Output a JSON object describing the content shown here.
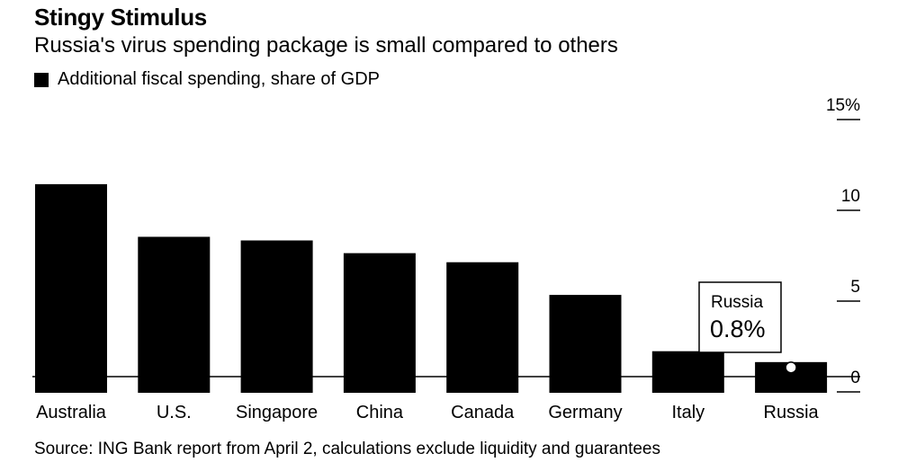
{
  "header": {
    "title": "Stingy Stimulus",
    "subtitle": "Russia's virus spending package is small compared to others",
    "legend_label": "Additional fiscal spending, share of GDP"
  },
  "footer": {
    "source": "Source: ING Bank report from April 2, calculations exclude liquidity and guarantees"
  },
  "callout": {
    "label": "Russia",
    "value": "0.8%"
  },
  "colors": {
    "bar": "#000000",
    "background": "#ffffff"
  },
  "chart_data": {
    "type": "bar",
    "categories": [
      "Australia",
      "U.S.",
      "Singapore",
      "China",
      "Canada",
      "Germany",
      "Italy",
      "Russia"
    ],
    "values": [
      10.6,
      7.7,
      7.5,
      6.8,
      6.3,
      4.5,
      1.4,
      0.8
    ],
    "title": "Stingy Stimulus",
    "subtitle": "Russia's virus spending package is small compared to others",
    "series": [
      {
        "name": "Additional fiscal spending, share of GDP",
        "values": [
          10.6,
          7.7,
          7.5,
          6.8,
          6.3,
          4.5,
          1.4,
          0.8
        ]
      }
    ],
    "y_ticks": [
      0,
      5,
      10,
      15
    ],
    "y_tick_labels": [
      "0",
      "5",
      "10",
      "15%"
    ],
    "ylim": [
      -0.6,
      15
    ],
    "y_axis_side": "right",
    "legend_position": "top-left",
    "grid": false,
    "annotation": {
      "category": "Russia",
      "text": "Russia 0.8%"
    }
  }
}
